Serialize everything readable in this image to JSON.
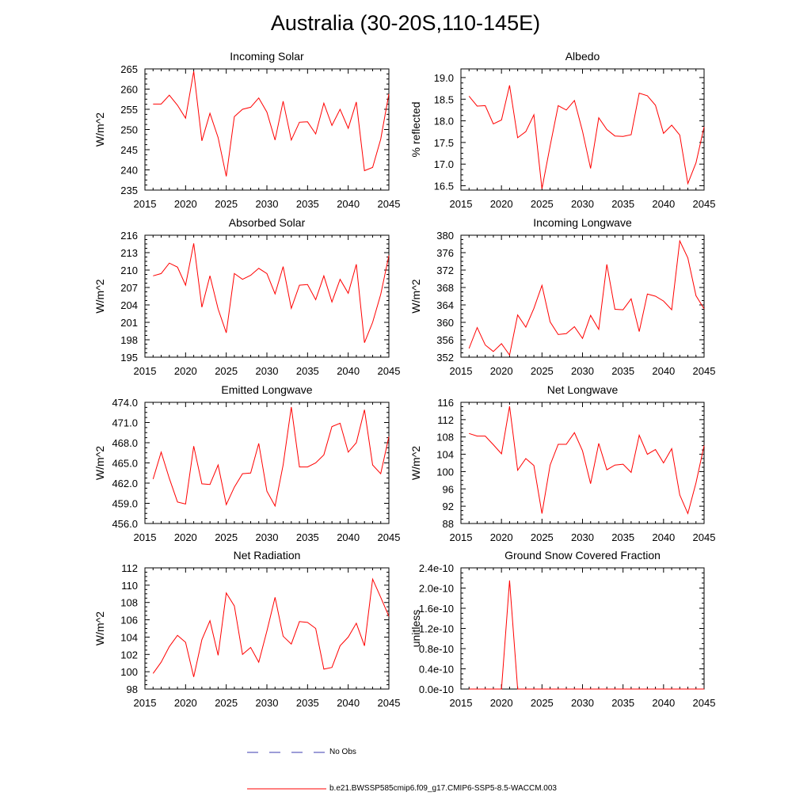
{
  "figure": {
    "title": "Australia (30-20S,110-145E)",
    "legend": [
      {
        "label": "No Obs",
        "color": "#3b3bb0",
        "dash": true
      },
      {
        "label": "b.e21.BWSSP585cmip6.f09_g17.CMIP6-SSP5-8.5-WACCM.003",
        "color": "#ff0000",
        "dash": false
      }
    ]
  },
  "colors": {
    "series": "#ff0000",
    "axis": "#000000",
    "noobs": "#3b3bb0"
  },
  "chart_data": [
    {
      "type": "line",
      "title": "Incoming Solar",
      "ylabel": "W/m^2",
      "xlim": [
        2015,
        2045
      ],
      "ylim": [
        235,
        265
      ],
      "xticks": [
        "2015",
        "2020",
        "2025",
        "2030",
        "2035",
        "2040",
        "2045"
      ],
      "yticks": [
        "235",
        "240",
        "245",
        "250",
        "255",
        "260",
        "265"
      ],
      "x": [
        2016,
        2017,
        2018,
        2019,
        2020,
        2021,
        2022,
        2023,
        2024,
        2025,
        2026,
        2027,
        2028,
        2029,
        2030,
        2031,
        2032,
        2033,
        2034,
        2035,
        2036,
        2037,
        2038,
        2039,
        2040,
        2041,
        2042,
        2043,
        2044,
        2045
      ],
      "series": [
        {
          "name": "b.e21.BWSSP585cmip6.f09_g17.CMIP6-SSP5-8.5-WACCM.003",
          "values": [
            256.3,
            256.3,
            258.5,
            256.0,
            252.8,
            264.4,
            247.2,
            254.0,
            248.0,
            238.4,
            253.2,
            255.0,
            255.5,
            257.8,
            254.3,
            247.4,
            257.0,
            247.4,
            251.8,
            251.9,
            248.9,
            256.5,
            251.0,
            255.0,
            250.3,
            256.8,
            239.8,
            240.6,
            247.6,
            258.8
          ]
        }
      ]
    },
    {
      "type": "line",
      "title": "Albedo",
      "ylabel": "% reflected",
      "xlim": [
        2015,
        2045
      ],
      "ylim": [
        16.4,
        19.2
      ],
      "xticks": [
        "2015",
        "2020",
        "2025",
        "2030",
        "2035",
        "2040",
        "2045"
      ],
      "yticks": [
        "16.5",
        "17.0",
        "17.5",
        "18.0",
        "18.5",
        "19.0"
      ],
      "x": [
        2016,
        2017,
        2018,
        2019,
        2020,
        2021,
        2022,
        2023,
        2024,
        2025,
        2026,
        2027,
        2028,
        2029,
        2030,
        2031,
        2032,
        2033,
        2034,
        2035,
        2036,
        2037,
        2038,
        2039,
        2040,
        2041,
        2042,
        2043,
        2044,
        2045
      ],
      "series": [
        {
          "name": "b.e21.BWSSP585cmip6.f09_g17.CMIP6-SSP5-8.5-WACCM.003",
          "values": [
            18.57,
            18.34,
            18.35,
            17.93,
            18.02,
            18.82,
            17.61,
            17.75,
            18.14,
            16.43,
            17.42,
            18.35,
            18.25,
            18.47,
            17.76,
            16.9,
            18.07,
            17.8,
            17.65,
            17.64,
            17.68,
            18.64,
            18.58,
            18.36,
            17.71,
            17.9,
            17.67,
            16.55,
            17.03,
            17.86
          ]
        }
      ]
    },
    {
      "type": "line",
      "title": "Absorbed Solar",
      "ylabel": "W/m^2",
      "xlim": [
        2015,
        2045
      ],
      "ylim": [
        195,
        216
      ],
      "xticks": [
        "2015",
        "2020",
        "2025",
        "2030",
        "2035",
        "2040",
        "2045"
      ],
      "yticks": [
        "195",
        "198",
        "201",
        "204",
        "207",
        "210",
        "213",
        "216"
      ],
      "x": [
        2016,
        2017,
        2018,
        2019,
        2020,
        2021,
        2022,
        2023,
        2024,
        2025,
        2026,
        2027,
        2028,
        2029,
        2030,
        2031,
        2032,
        2033,
        2034,
        2035,
        2036,
        2037,
        2038,
        2039,
        2040,
        2041,
        2042,
        2043,
        2044,
        2045
      ],
      "series": [
        {
          "name": "b.e21.BWSSP585cmip6.f09_g17.CMIP6-SSP5-8.5-WACCM.003",
          "values": [
            209.0,
            209.4,
            211.2,
            210.5,
            207.4,
            214.6,
            203.6,
            209.0,
            203.3,
            199.2,
            209.4,
            208.4,
            209.1,
            210.3,
            209.4,
            205.9,
            210.6,
            203.4,
            207.4,
            207.5,
            204.9,
            209.0,
            204.5,
            208.4,
            206.0,
            211.0,
            197.5,
            201.0,
            205.8,
            212.5
          ]
        }
      ]
    },
    {
      "type": "line",
      "title": "Incoming Longwave",
      "ylabel": "W/m^2",
      "xlim": [
        2015,
        2045
      ],
      "ylim": [
        352,
        380
      ],
      "xticks": [
        "2015",
        "2020",
        "2025",
        "2030",
        "2035",
        "2040",
        "2045"
      ],
      "yticks": [
        "352",
        "356",
        "360",
        "364",
        "368",
        "372",
        "376",
        "380"
      ],
      "x": [
        2016,
        2017,
        2018,
        2019,
        2020,
        2021,
        2022,
        2023,
        2024,
        2025,
        2026,
        2027,
        2028,
        2029,
        2030,
        2031,
        2032,
        2033,
        2034,
        2035,
        2036,
        2037,
        2038,
        2039,
        2040,
        2041,
        2042,
        2043,
        2044,
        2045
      ],
      "series": [
        {
          "name": "b.e21.BWSSP585cmip6.f09_g17.CMIP6-SSP5-8.5-WACCM.003",
          "values": [
            354.0,
            358.8,
            354.8,
            353.3,
            355.1,
            352.5,
            361.7,
            358.9,
            363.2,
            368.5,
            360.1,
            357.2,
            357.4,
            359.0,
            356.3,
            361.6,
            358.4,
            373.3,
            363.0,
            362.9,
            365.4,
            357.9,
            366.5,
            366.0,
            364.9,
            362.9,
            378.7,
            374.8,
            366.1,
            363.1
          ]
        }
      ]
    },
    {
      "type": "line",
      "title": "Emitted Longwave",
      "ylabel": "W/m^2",
      "xlim": [
        2015,
        2045
      ],
      "ylim": [
        456,
        474
      ],
      "xticks": [
        "2015",
        "2020",
        "2025",
        "2030",
        "2035",
        "2040",
        "2045"
      ],
      "yticks": [
        "456.0",
        "459.0",
        "462.0",
        "465.0",
        "468.0",
        "471.0",
        "474.0"
      ],
      "x": [
        2016,
        2017,
        2018,
        2019,
        2020,
        2021,
        2022,
        2023,
        2024,
        2025,
        2026,
        2027,
        2028,
        2029,
        2030,
        2031,
        2032,
        2033,
        2034,
        2035,
        2036,
        2037,
        2038,
        2039,
        2040,
        2041,
        2042,
        2043,
        2044,
        2045
      ],
      "series": [
        {
          "name": "b.e21.BWSSP585cmip6.f09_g17.CMIP6-SSP5-8.5-WACCM.003",
          "values": [
            462.6,
            466.6,
            462.7,
            459.2,
            458.9,
            467.5,
            461.9,
            461.8,
            464.7,
            458.8,
            461.4,
            463.4,
            463.5,
            467.9,
            460.8,
            458.6,
            464.7,
            473.3,
            464.4,
            464.4,
            465.0,
            466.2,
            470.4,
            470.9,
            466.6,
            468.0,
            472.9,
            464.7,
            463.4,
            468.9
          ]
        }
      ]
    },
    {
      "type": "line",
      "title": "Net Longwave",
      "ylabel": "W/m^2",
      "xlim": [
        2015,
        2045
      ],
      "ylim": [
        88,
        116
      ],
      "xticks": [
        "2015",
        "2020",
        "2025",
        "2030",
        "2035",
        "2040",
        "2045"
      ],
      "yticks": [
        "88",
        "92",
        "96",
        "100",
        "104",
        "108",
        "112",
        "116"
      ],
      "x": [
        2016,
        2017,
        2018,
        2019,
        2020,
        2021,
        2022,
        2023,
        2024,
        2025,
        2026,
        2027,
        2028,
        2029,
        2030,
        2031,
        2032,
        2033,
        2034,
        2035,
        2036,
        2037,
        2038,
        2039,
        2040,
        2041,
        2042,
        2043,
        2044,
        2045
      ],
      "series": [
        {
          "name": "b.e21.BWSSP585cmip6.f09_g17.CMIP6-SSP5-8.5-WACCM.003",
          "values": [
            108.8,
            108.2,
            108.2,
            106.2,
            104.1,
            115.1,
            100.3,
            103.0,
            101.4,
            90.3,
            101.5,
            106.3,
            106.3,
            109.0,
            104.8,
            97.2,
            106.5,
            100.4,
            101.5,
            101.7,
            99.8,
            108.4,
            104.0,
            105.1,
            102.0,
            105.3,
            94.6,
            90.3,
            97.4,
            106.0
          ]
        }
      ]
    },
    {
      "type": "line",
      "title": "Net Radiation",
      "ylabel": "W/m^2",
      "xlim": [
        2015,
        2045
      ],
      "ylim": [
        98,
        112
      ],
      "xticks": [
        "2015",
        "2020",
        "2025",
        "2030",
        "2035",
        "2040",
        "2045"
      ],
      "yticks": [
        "98",
        "100",
        "102",
        "104",
        "106",
        "108",
        "110",
        "112"
      ],
      "x": [
        2016,
        2017,
        2018,
        2019,
        2020,
        2021,
        2022,
        2023,
        2024,
        2025,
        2026,
        2027,
        2028,
        2029,
        2030,
        2031,
        2032,
        2033,
        2034,
        2035,
        2036,
        2037,
        2038,
        2039,
        2040,
        2041,
        2042,
        2043,
        2044,
        2045
      ],
      "series": [
        {
          "name": "b.e21.BWSSP585cmip6.f09_g17.CMIP6-SSP5-8.5-WACCM.003",
          "values": [
            99.8,
            101.1,
            102.9,
            104.2,
            103.4,
            99.4,
            103.7,
            105.9,
            101.9,
            109.1,
            107.6,
            102.0,
            102.8,
            101.1,
            104.7,
            108.6,
            104.1,
            103.2,
            105.8,
            105.7,
            105.0,
            100.3,
            100.5,
            103.0,
            104.0,
            105.6,
            103.0,
            110.7,
            108.6,
            106.4
          ]
        }
      ]
    },
    {
      "type": "line",
      "title": "Ground Snow Covered Fraction",
      "ylabel": "unitless",
      "xlim": [
        2015,
        2045
      ],
      "ylim": [
        0,
        2.4e-10
      ],
      "xticks": [
        "2015",
        "2020",
        "2025",
        "2030",
        "2035",
        "2040",
        "2045"
      ],
      "yticks": [
        "0.0e-10",
        "0.4e-10",
        "0.8e-10",
        "1.2e-10",
        "1.6e-10",
        "2.0e-10",
        "2.4e-10"
      ],
      "x": [
        2016,
        2017,
        2018,
        2019,
        2020,
        2021,
        2022,
        2023,
        2024,
        2025,
        2026,
        2027,
        2028,
        2029,
        2030,
        2031,
        2032,
        2033,
        2034,
        2035,
        2036,
        2037,
        2038,
        2039,
        2040,
        2041,
        2042,
        2043,
        2044,
        2045
      ],
      "series": [
        {
          "name": "b.e21.BWSSP585cmip6.f09_g17.CMIP6-SSP5-8.5-WACCM.003",
          "values": [
            0,
            0,
            0,
            0,
            0,
            2.15e-10,
            0,
            0,
            0,
            0,
            0,
            0,
            0,
            0,
            0,
            0,
            0,
            0,
            0,
            0,
            0,
            0,
            0,
            0,
            0,
            0,
            0,
            0,
            0,
            0
          ]
        }
      ]
    }
  ]
}
